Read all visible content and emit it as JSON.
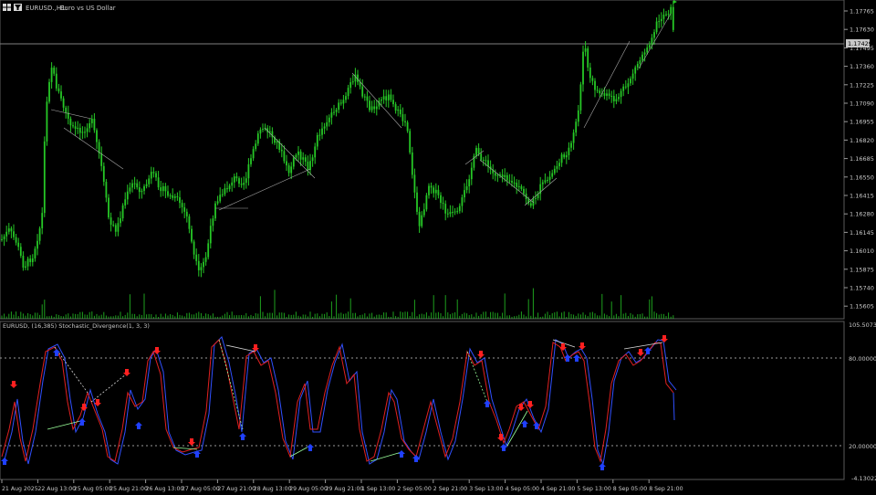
{
  "header": {
    "symbol": "EURUSD",
    "timeframe_label": "EURUSD.,H1:",
    "description": "Euro vs US Dollar"
  },
  "price_pane": {
    "price_levels": [
      "1.17765",
      "1.17630",
      "1.17495",
      "1.17360",
      "1.17225",
      "1.17090",
      "1.16955",
      "1.16820",
      "1.16685",
      "1.16550",
      "1.16415",
      "1.16280",
      "1.16145",
      "1.16010",
      "1.15875",
      "1.15740",
      "1.15605"
    ],
    "current_price": "1.17429",
    "current_price_line_color": "#808080",
    "candle_color": "#26c826",
    "volume_color": "#26c826"
  },
  "indicator_pane": {
    "label": "EURUSD, (16,385)  Stochastic_Divergence(1, 3, 3)",
    "scale_top": "105.507337",
    "level_high": "80.000000",
    "level_low": "20.000000",
    "scale_bottom": "-4.130220",
    "main_line_color": "#e02020",
    "signal_line_color": "#3050ff",
    "sell_arrow_color": "#ff2020",
    "buy_arrow_color": "#2040ff"
  },
  "time_axis": {
    "labels": [
      "21 Aug 2025",
      "22 Aug 13:00",
      "25 Aug 05:00",
      "25 Aug 21:00",
      "26 Aug 13:00",
      "27 Aug 05:00",
      "27 Aug 21:00",
      "28 Aug 13:00",
      "29 Aug 05:00",
      "29 Aug 21:00",
      "1 Sep 13:00",
      "2 Sep 05:00",
      "2 Sep 21:00",
      "3 Sep 13:00",
      "4 Sep 05:00",
      "4 Sep 21:00",
      "5 Sep 13:00",
      "8 Sep 05:00",
      "8 Sep 21:00"
    ]
  },
  "icons": {
    "window_icon": "grid-icon",
    "filter_icon": "funnel-icon"
  }
}
